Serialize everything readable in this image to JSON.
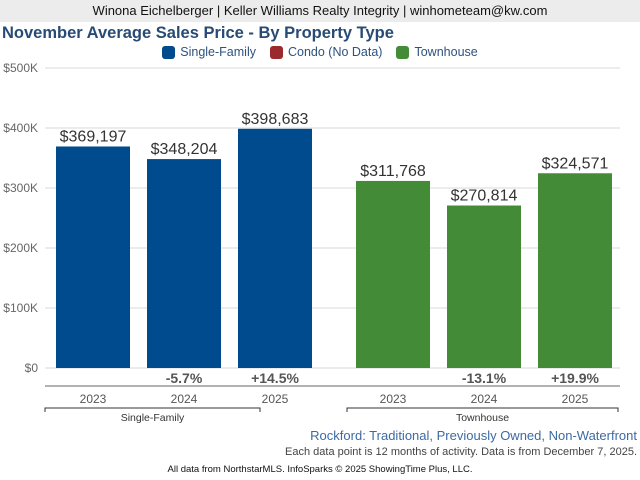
{
  "header": {
    "text": "Winona Eichelberger | Keller Williams Realty Integrity | winhometeam@kw.com"
  },
  "chart_data": {
    "type": "bar",
    "title": "November Average Sales Price - By Property Type",
    "ylabel": "",
    "xlabel": "",
    "ylim": [
      0,
      500000
    ],
    "yticks": [
      0,
      100000,
      200000,
      300000,
      400000,
      500000
    ],
    "ytick_labels": [
      "$0",
      "$100K",
      "$200K",
      "$300K",
      "$400K",
      "$500K"
    ],
    "grid": true,
    "legend_position": "top-center",
    "legend": [
      {
        "name": "Single-Family",
        "color": "#004b8d"
      },
      {
        "name": "Condo (No Data)",
        "color": "#9b2a2f"
      },
      {
        "name": "Townhouse",
        "color": "#438b37"
      }
    ],
    "groups": [
      {
        "name": "Single-Family",
        "color": "#004b8d",
        "categories": [
          "2023",
          "2024",
          "2025"
        ],
        "values": [
          369197,
          348204,
          398683
        ],
        "value_labels": [
          "$369,197",
          "$348,204",
          "$398,683"
        ],
        "pct_change": [
          "",
          "-5.7%",
          "+14.5%"
        ]
      },
      {
        "name": "Townhouse",
        "color": "#438b37",
        "categories": [
          "2023",
          "2024",
          "2025"
        ],
        "values": [
          311768,
          270814,
          324571
        ],
        "value_labels": [
          "$311,768",
          "$270,814",
          "$324,571"
        ],
        "pct_change": [
          "",
          "-13.1%",
          "+19.9%"
        ]
      }
    ]
  },
  "footer": {
    "area": "Rockford: Traditional, Previously Owned, Non-Waterfront",
    "note": "Each data point is 12 months of activity. Data is from December 7, 2025.",
    "source": "All data from NorthstarMLS. InfoSparks © 2025 ShowingTime Plus, LLC."
  }
}
